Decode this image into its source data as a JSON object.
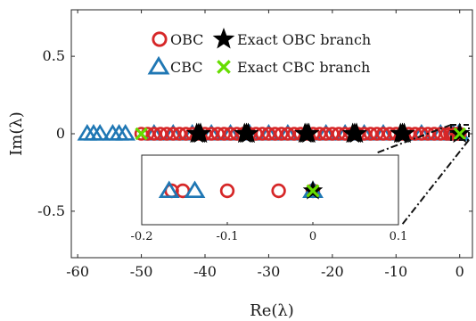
{
  "chart_data": {
    "type": "scatter",
    "xlabel": "Re(λ)",
    "ylabel": "Im(λ)",
    "xlim": [
      -61,
      2
    ],
    "ylim": [
      -0.8,
      0.8
    ],
    "xticks": [
      -60,
      -50,
      -40,
      -30,
      -20,
      -10,
      0
    ],
    "xtick_labels": [
      "-60",
      "-50",
      "-40",
      "-30",
      "-20",
      "-10",
      "0"
    ],
    "yticks": [
      -0.5,
      0,
      0.5
    ],
    "ytick_labels": [
      "-0.5",
      "0",
      "0.5"
    ],
    "grid": false,
    "legend_position": "top-center",
    "series": [
      {
        "name": "OBC",
        "marker": "circle",
        "color": "#d62728",
        "x": [
          -50.0,
          -49.0,
          -48.0,
          -47.0,
          -46.0,
          -45.0,
          -44.0,
          -43.0,
          -42.0,
          -41.0,
          -40.0,
          -39.0,
          -38.0,
          -37.0,
          -36.0,
          -35.0,
          -34.0,
          -33.0,
          -32.0,
          -31.0,
          -30.0,
          -29.0,
          -28.0,
          -27.0,
          -26.0,
          -25.0,
          -24.0,
          -23.0,
          -22.0,
          -21.0,
          -20.0,
          -19.0,
          -18.0,
          -17.0,
          -16.0,
          -15.0,
          -14.0,
          -13.0,
          -12.0,
          -11.0,
          -10.0,
          -9.0,
          -8.0,
          -7.0,
          -6.0,
          -5.0,
          -4.0,
          -3.0,
          -2.0,
          -1.5,
          -1.0,
          -0.5,
          -0.15,
          -0.1,
          -0.04,
          0.0
        ],
        "y": [
          0,
          0,
          0,
          0,
          0,
          0,
          0,
          0,
          0,
          0,
          0,
          0,
          0,
          0,
          0,
          0,
          0,
          0,
          0,
          0,
          0,
          0,
          0,
          0,
          0,
          0,
          0,
          0,
          0,
          0,
          0,
          0,
          0,
          0,
          0,
          0,
          0,
          0,
          0,
          0,
          0,
          0,
          0,
          0,
          0,
          0,
          0,
          0,
          0,
          0,
          0,
          0,
          0,
          0,
          0,
          0
        ]
      },
      {
        "name": "Exact OBC branch",
        "marker": "star",
        "color": "#000000",
        "x": [
          -41.3,
          -41.0,
          -40.7,
          -33.8,
          -33.5,
          -33.2,
          -24.3,
          -24.0,
          -23.7,
          -16.8,
          -16.5,
          -16.2,
          -9.3,
          -9.0,
          -8.7,
          0.0
        ],
        "y": [
          0,
          0,
          0,
          0,
          0,
          0,
          0,
          0,
          0,
          0,
          0,
          0,
          0,
          0,
          0,
          0
        ]
      },
      {
        "name": "CBC",
        "marker": "triangle",
        "color": "#1f77b4",
        "x": [
          -58.5,
          -57.5,
          -56.5,
          -54.5,
          -53.5,
          -52.5,
          -48.0,
          -45.0,
          -42.0,
          -39.0,
          -36.0,
          -33.0,
          -30.0,
          -27.0,
          -24.0,
          -21.0,
          -18.0,
          -15.0,
          -12.0,
          -9.0,
          -6.0,
          -3.0,
          -1.0,
          -0.16,
          -0.14,
          0.0
        ],
        "y": [
          0,
          0,
          0,
          0,
          0,
          0,
          0,
          0,
          0,
          0,
          0,
          0,
          0,
          0,
          0,
          0,
          0,
          0,
          0,
          0,
          0,
          0,
          0,
          0,
          0,
          0
        ]
      },
      {
        "name": "Exact CBC branch",
        "marker": "x",
        "color": "#66dd00",
        "x": [
          -50.0,
          0.0
        ],
        "y": [
          0,
          0
        ]
      }
    ],
    "inset": {
      "xlim": [
        -0.2,
        0.1
      ],
      "xticks": [
        -0.2,
        -0.1,
        0,
        0.1
      ],
      "xtick_labels": [
        "-0.2",
        "-0.1",
        "0",
        "0.1"
      ],
      "series": [
        {
          "name": "OBC",
          "marker": "circle",
          "color": "#d62728",
          "x": [
            -0.165,
            -0.152,
            -0.1,
            -0.04,
            0.0
          ]
        },
        {
          "name": "CBC",
          "marker": "triangle",
          "color": "#1f77b4",
          "x": [
            -0.168,
            -0.138,
            0.0
          ]
        },
        {
          "name": "Exact OBC branch",
          "marker": "star",
          "color": "#000000",
          "x": [
            0.0
          ]
        },
        {
          "name": "Exact CBC branch",
          "marker": "x",
          "color": "#66dd00",
          "x": [
            0.0
          ]
        }
      ]
    },
    "legend": [
      {
        "marker": "circle",
        "label": "OBC"
      },
      {
        "marker": "star",
        "label": "Exact OBC branch"
      },
      {
        "marker": "triangle",
        "label": "CBC"
      },
      {
        "marker": "x",
        "label": "Exact CBC branch"
      }
    ]
  }
}
